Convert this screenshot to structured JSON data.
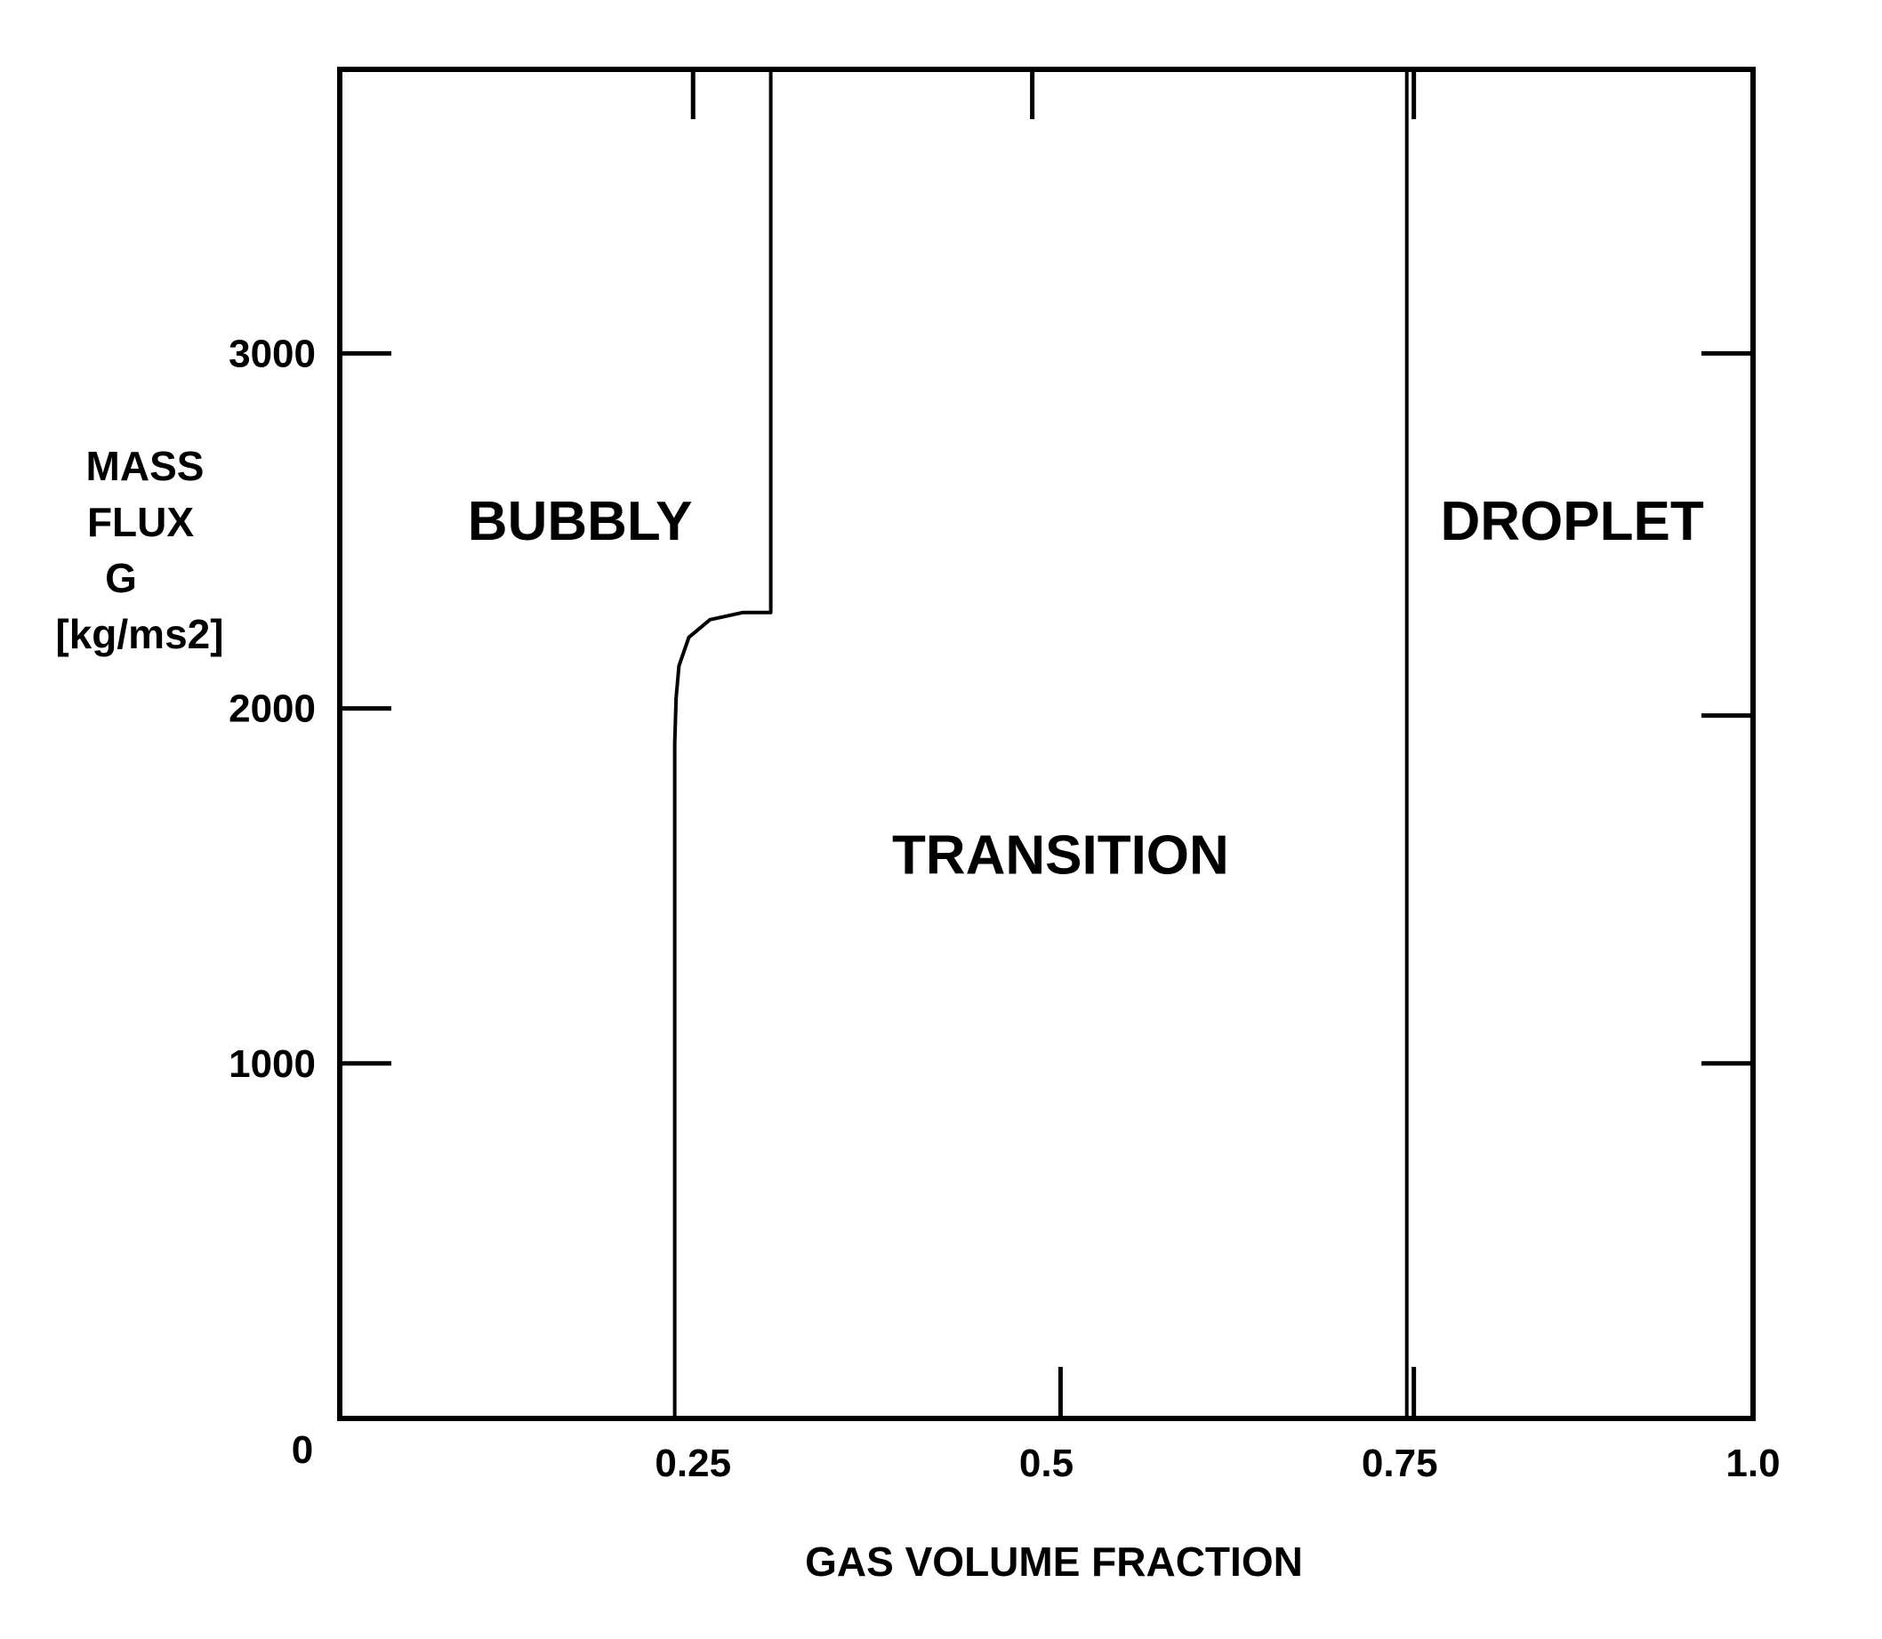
{
  "chart_data": {
    "type": "line",
    "title": "",
    "xlabel": "GAS VOLUME FRACTION",
    "ylabel_lines": [
      "MASS",
      "FLUX",
      "G",
      "[kg/ms2]"
    ],
    "xlim": [
      0,
      1.0
    ],
    "ylim": [
      0,
      3800
    ],
    "grid": false,
    "x_tick_labels": [
      {
        "value": 0,
        "label": "0"
      },
      {
        "value": 0.25,
        "label": "0.25"
      },
      {
        "value": 0.5,
        "label": "0.5"
      },
      {
        "value": 0.75,
        "label": "0.75"
      },
      {
        "value": 1.0,
        "label": "1.0"
      }
    ],
    "y_tick_labels": [
      {
        "value": 1000,
        "label": "1000"
      },
      {
        "value": 2000,
        "label": "2000"
      },
      {
        "value": 3000,
        "label": "3000"
      }
    ],
    "minor_ticks_top": [
      0.25,
      0.49,
      0.76
    ],
    "minor_ticks_bottom": [
      0.51,
      0.76
    ],
    "minor_ticks_right": [
      3000,
      1980,
      1000
    ],
    "series": [
      {
        "boundary": "bubbly-transition",
        "x": [
          0.237,
          0.237,
          0.238,
          0.24,
          0.247,
          0.262,
          0.285,
          0.305,
          0.305
        ],
        "y": [
          0,
          1900,
          2030,
          2120,
          2200,
          2250,
          2270,
          2270,
          3800
        ]
      },
      {
        "boundary": "transition-droplet",
        "x": [
          0.755,
          0.755
        ],
        "y": [
          0,
          3800
        ]
      }
    ],
    "regions": [
      {
        "label": "BUBBLY",
        "x": 0.17,
        "y": 2530
      },
      {
        "label": "TRANSITION",
        "x": 0.51,
        "y": 1590
      },
      {
        "label": "DROPLET",
        "x": 0.872,
        "y": 2530
      }
    ]
  }
}
